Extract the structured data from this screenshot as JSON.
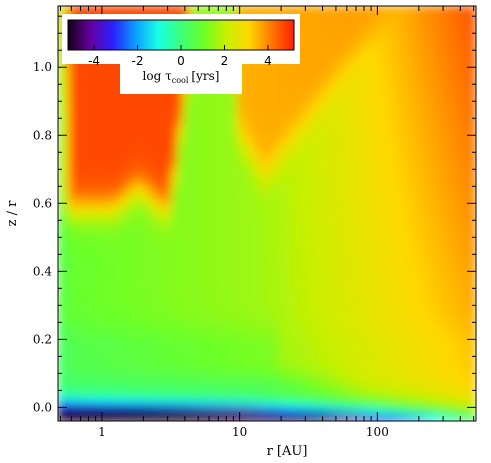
{
  "chart_data": {
    "type": "heatmap",
    "xlabel": "r [AU]",
    "ylabel": "z / r",
    "xscale": "log",
    "xlim": [
      0.48,
      520
    ],
    "ylim": [
      -0.04,
      1.18
    ],
    "x_ticks": [
      {
        "value": 1,
        "label": "1"
      },
      {
        "value": 10,
        "label": "10"
      },
      {
        "value": 100,
        "label": "100"
      }
    ],
    "y_ticks": [
      {
        "value": 0.0,
        "label": "0.0"
      },
      {
        "value": 0.2,
        "label": "0.2"
      },
      {
        "value": 0.4,
        "label": "0.4"
      },
      {
        "value": 0.6,
        "label": "0.6"
      },
      {
        "value": 0.8,
        "label": "0.8"
      },
      {
        "value": 1.0,
        "label": "1.0"
      }
    ],
    "colorbar": {
      "title_main": "log τ",
      "title_sub": "cool",
      "title_unit": "[yrs]",
      "range": [
        -5.2,
        5.2
      ],
      "placement": "top-left",
      "ticks": [
        {
          "value": -4,
          "label": "-4"
        },
        {
          "value": -2,
          "label": "-2"
        },
        {
          "value": 0,
          "label": "0"
        },
        {
          "value": 2,
          "label": "2"
        },
        {
          "value": 4,
          "label": "4"
        }
      ]
    },
    "colors": {
      "scale": [
        "#140014",
        "#6400a0",
        "#2a20ff",
        "#0aa0ff",
        "#19ffe6",
        "#3cff78",
        "#6cff28",
        "#c8f000",
        "#ffd800",
        "#ff7800",
        "#ff1e00"
      ],
      "approx_regions": {
        "lower_inner_disk_r_lt_10AU_z_lt_0.05": "-3 to -1",
        "midplane_outer": "0 to 1",
        "disk_z_0.1_to_0.55": "1 to 2",
        "upper_inner_atmosphere": "4 to 5",
        "outer_upper": "3 to 4"
      }
    }
  }
}
